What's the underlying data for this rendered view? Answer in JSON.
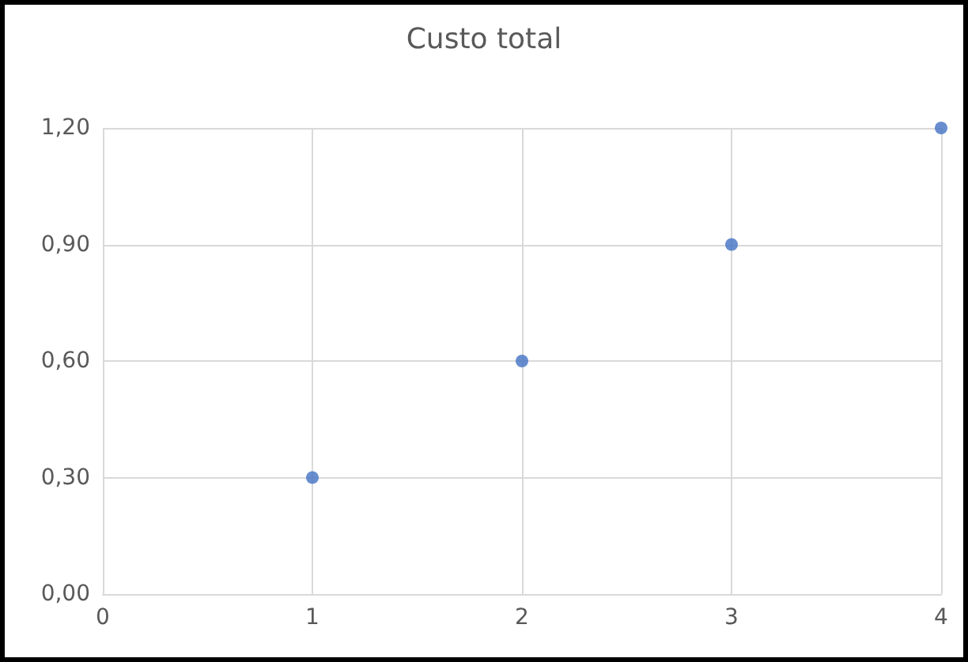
{
  "chart_data": {
    "type": "scatter",
    "title": "Custo total",
    "x": [
      1,
      2,
      3,
      4
    ],
    "series": [
      {
        "color": "#4472c4",
        "values": [
          0.3,
          0.6,
          0.9,
          1.2
        ]
      }
    ],
    "xlim": [
      0,
      4
    ],
    "xticks": [
      0,
      1,
      2,
      3,
      4
    ],
    "ylim": [
      0,
      1.2
    ],
    "yticks": [
      {
        "value": 0,
        "label": "0,00"
      },
      {
        "value": 0.3,
        "label": "0,30"
      },
      {
        "value": 0.6,
        "label": "0,60"
      },
      {
        "value": 0.9,
        "label": "0,90"
      },
      {
        "value": 1.2,
        "label": "1,20"
      }
    ],
    "grid": true,
    "marker": "circle"
  }
}
